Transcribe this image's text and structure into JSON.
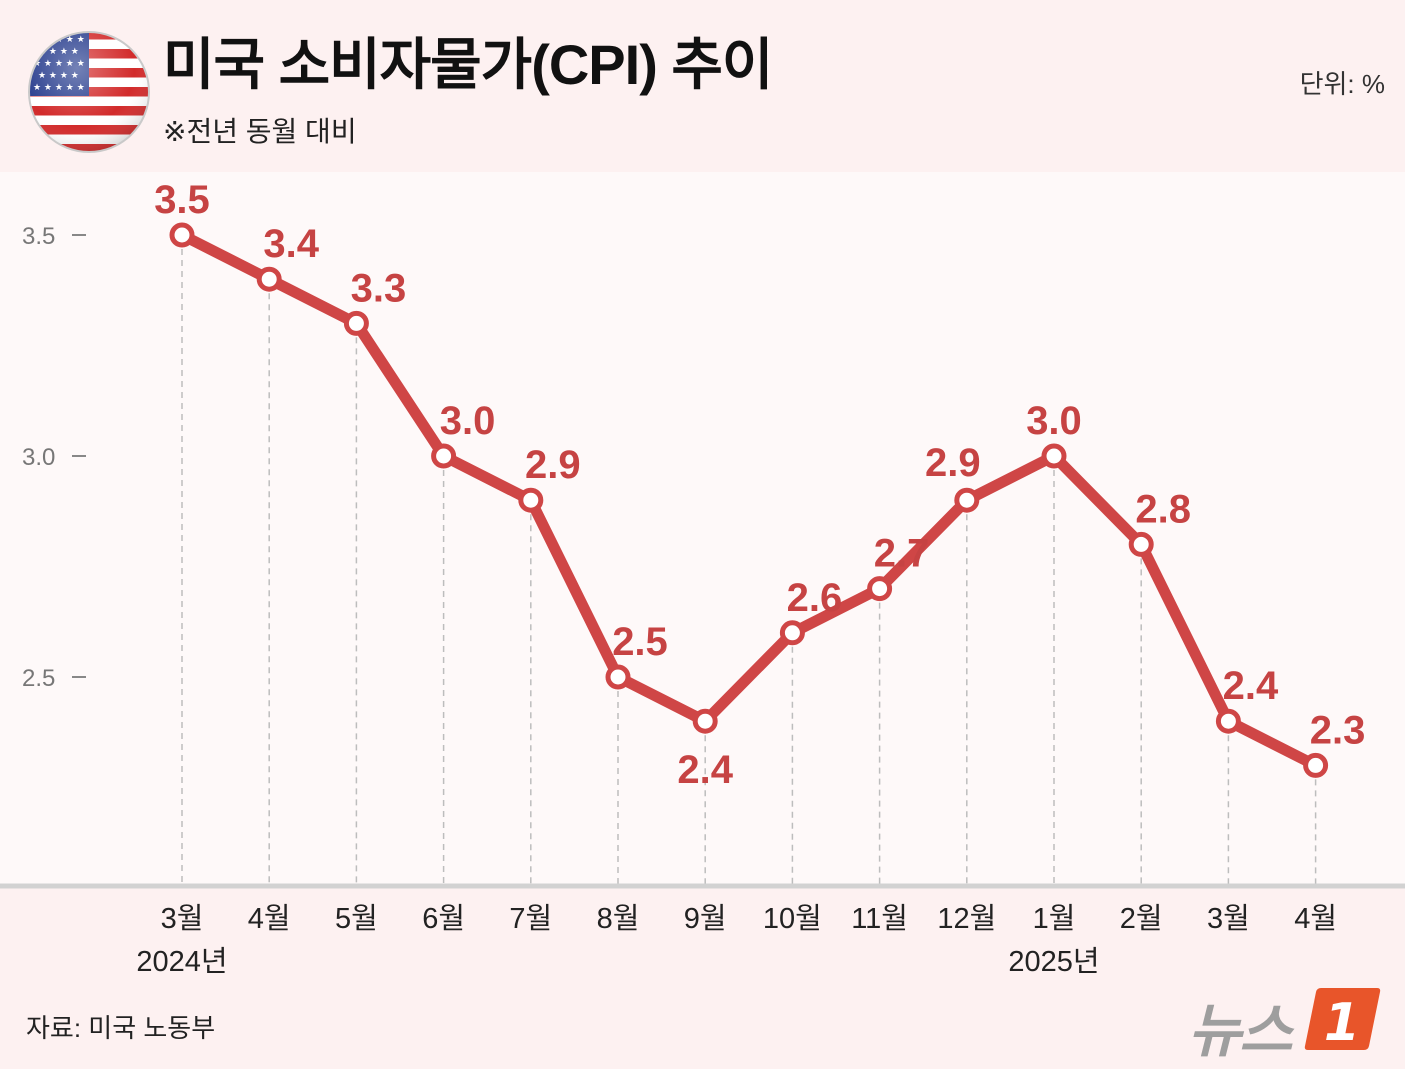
{
  "header": {
    "title": "미국 소비자물가(CPI) 추이",
    "subtitle": "※전년 동월 대비",
    "unit": "단위: %"
  },
  "footer": {
    "source": "자료: 미국 노동부",
    "logo_text": "뉴스",
    "logo_mark": "1"
  },
  "colors": {
    "line": "#cf4646",
    "label": "#c64343",
    "background": "#fdf1f1",
    "plot_background": "#ffffff",
    "flag": "flag-icon"
  },
  "chart_data": {
    "type": "line",
    "title": "미국 소비자물가(CPI) 추이",
    "subtitle": "※전년 동월 대비",
    "ylabel": "단위: %",
    "categories": [
      "3월",
      "4월",
      "5월",
      "6월",
      "7월",
      "8월",
      "9월",
      "10월",
      "11월",
      "12월",
      "1월",
      "2월",
      "3월",
      "4월"
    ],
    "year_labels": [
      "2024년",
      "",
      "",
      "",
      "",
      "",
      "",
      "",
      "",
      "",
      "2025년",
      "",
      "",
      ""
    ],
    "series": [
      {
        "values": [
          3.5,
          3.4,
          3.3,
          3.0,
          2.9,
          2.5,
          2.4,
          2.6,
          2.7,
          2.9,
          3.0,
          2.8,
          2.4,
          2.3
        ]
      }
    ],
    "data_labels": [
      "3.5",
      "3.4",
      "3.3",
      "3.0",
      "2.9",
      "2.5",
      "2.4",
      "2.6",
      "2.7",
      "2.9",
      "3.0",
      "2.8",
      "2.4",
      "2.3"
    ],
    "yticks": [
      "3.5",
      "3.0",
      "2.5"
    ],
    "ytick_values": [
      3.5,
      3.0,
      2.5
    ],
    "grid": "vertical-dashed",
    "legend": "none"
  }
}
